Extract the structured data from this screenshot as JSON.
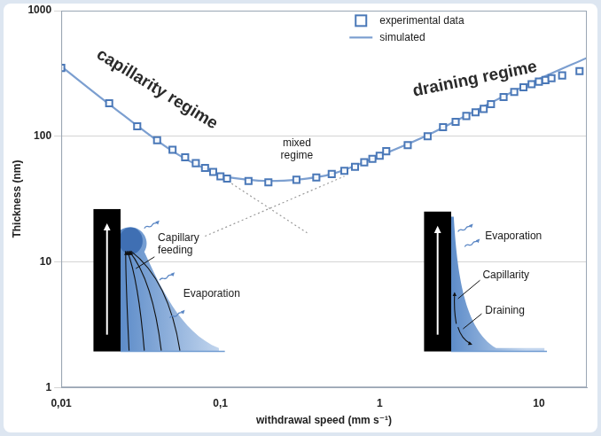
{
  "chart_data": {
    "type": "scatter",
    "x_label": "withdrawal speed (mm s⁻¹)",
    "y_label": "Thickness (nm)",
    "log": true,
    "grid": true,
    "legend": "top",
    "xlim": [
      0.01,
      20
    ],
    "xticks": [
      {
        "value": 0.01,
        "label": "0,01"
      },
      {
        "value": 0.1,
        "label": "0,1"
      },
      1,
      10
    ],
    "ylim": [
      1,
      1000
    ],
    "yticks": [
      1,
      10,
      100,
      1000
    ],
    "series": [
      {
        "name": "experimental data",
        "color": "#4a78b8",
        "marker": "square",
        "line_style": "none",
        "x": [
          0.01,
          0.02,
          0.03,
          0.04,
          0.05,
          0.06,
          0.07,
          0.08,
          0.09,
          0.1,
          0.11,
          0.15,
          0.2,
          0.3,
          0.4,
          0.5,
          0.6,
          0.7,
          0.8,
          0.9,
          1,
          1.1,
          1.5,
          2,
          2.5,
          3,
          3.5,
          4,
          4.5,
          5,
          6,
          7,
          8,
          9,
          10,
          11,
          12,
          14,
          18
        ],
        "values": [
          350,
          183,
          120,
          93,
          78,
          68,
          61,
          56,
          52,
          48,
          46,
          44,
          43,
          45,
          47,
          50,
          53,
          57,
          62,
          66,
          70,
          76,
          85,
          100,
          118,
          130,
          145,
          155,
          165,
          180,
          205,
          225,
          245,
          260,
          272,
          280,
          290,
          305,
          330
        ]
      },
      {
        "name": "simulated",
        "color": "#7c9fd0",
        "marker": "none",
        "line_style": "solid",
        "x": [
          0.01,
          0.02,
          0.05,
          0.1,
          0.15,
          0.2,
          0.3,
          0.5,
          1,
          2,
          5,
          10,
          20
        ],
        "values": [
          360,
          180,
          76,
          49,
          45,
          44,
          45,
          50,
          70,
          102,
          185,
          285,
          420
        ]
      }
    ],
    "guides": [
      {
        "color": "#9a9a9a",
        "line_style": "dotted",
        "x": [
          0.1,
          0.35
        ],
        "values": [
          48,
          17
        ]
      },
      {
        "color": "#9a9a9a",
        "line_style": "dotted",
        "x": [
          0.08,
          0.6
        ],
        "values": [
          16,
          48
        ]
      }
    ],
    "annotations": [
      "capillarity regime",
      "mixed regime",
      "draining regime"
    ],
    "insets": [
      {
        "labels": [
          "Capillary feeding",
          "Evaporation"
        ]
      },
      {
        "labels": [
          "Evaporation",
          "Capillarity",
          "Draining"
        ]
      }
    ]
  }
}
